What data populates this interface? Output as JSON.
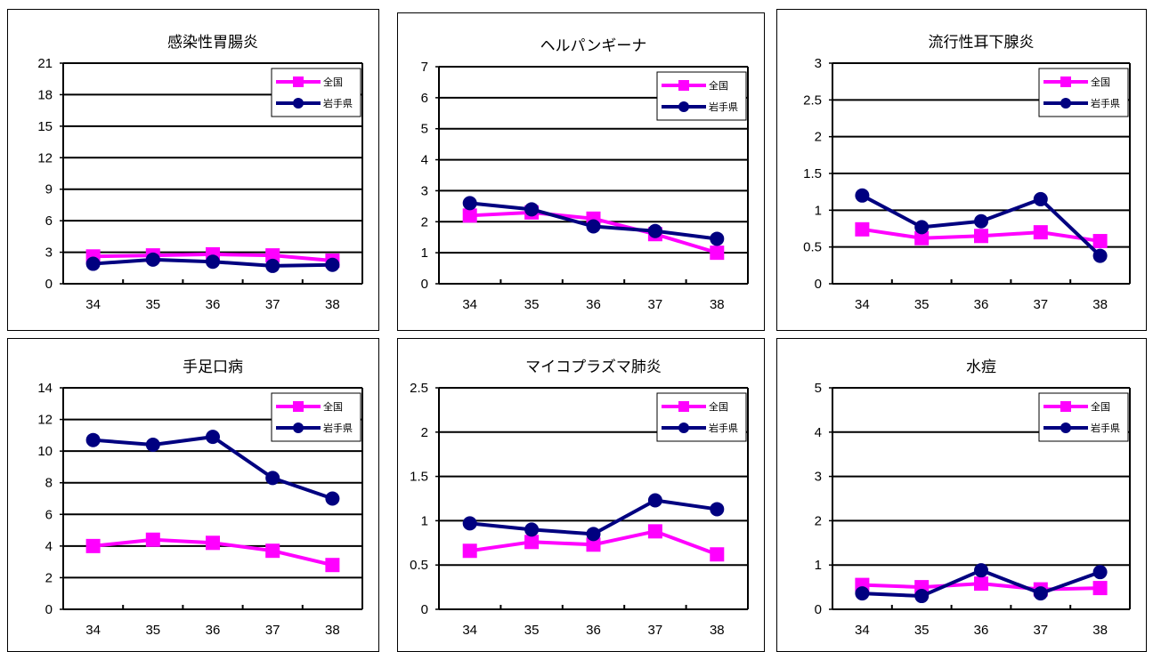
{
  "chart_data": [
    {
      "type": "line",
      "title": "感染性胃腸炎",
      "categories": [
        "34",
        "35",
        "36",
        "37",
        "38"
      ],
      "ylim": [
        0,
        21
      ],
      "yticks": [
        "0",
        "3",
        "6",
        "9",
        "12",
        "15",
        "18",
        "21"
      ],
      "grid": true,
      "legend": "top-right",
      "series": [
        {
          "name": "全国",
          "color": "#ff00ff",
          "marker": "square",
          "values": [
            2.6,
            2.7,
            2.8,
            2.7,
            2.2
          ]
        },
        {
          "name": "岩手県",
          "color": "#000080",
          "marker": "circle",
          "values": [
            1.9,
            2.3,
            2.1,
            1.7,
            1.8
          ]
        }
      ]
    },
    {
      "type": "line",
      "title": "ヘルパンギーナ",
      "categories": [
        "34",
        "35",
        "36",
        "37",
        "38"
      ],
      "ylim": [
        0,
        7
      ],
      "yticks": [
        "0",
        "1",
        "2",
        "3",
        "4",
        "5",
        "6",
        "7"
      ],
      "grid": true,
      "legend": "top-right",
      "series": [
        {
          "name": "全国",
          "color": "#ff00ff",
          "marker": "square",
          "values": [
            2.2,
            2.3,
            2.1,
            1.6,
            1.0
          ]
        },
        {
          "name": "岩手県",
          "color": "#000080",
          "marker": "circle",
          "values": [
            2.6,
            2.4,
            1.85,
            1.7,
            1.45
          ]
        }
      ]
    },
    {
      "type": "line",
      "title": "流行性耳下腺炎",
      "categories": [
        "34",
        "35",
        "36",
        "37",
        "38"
      ],
      "ylim": [
        0,
        3
      ],
      "yticks": [
        "0",
        "0.5",
        "1",
        "1.5",
        "2",
        "2.5",
        "3"
      ],
      "grid": true,
      "legend": "top-right",
      "series": [
        {
          "name": "全国",
          "color": "#ff00ff",
          "marker": "square",
          "values": [
            0.74,
            0.62,
            0.65,
            0.7,
            0.58
          ]
        },
        {
          "name": "岩手県",
          "color": "#000080",
          "marker": "circle",
          "values": [
            1.2,
            0.77,
            0.85,
            1.15,
            0.38
          ]
        }
      ]
    },
    {
      "type": "line",
      "title": "手足口病",
      "categories": [
        "34",
        "35",
        "36",
        "37",
        "38"
      ],
      "ylim": [
        0,
        14
      ],
      "yticks": [
        "0",
        "2",
        "4",
        "6",
        "8",
        "10",
        "12",
        "14"
      ],
      "grid": true,
      "legend": "top-right",
      "series": [
        {
          "name": "全国",
          "color": "#ff00ff",
          "marker": "square",
          "values": [
            4.0,
            4.4,
            4.2,
            3.7,
            2.8
          ]
        },
        {
          "name": "岩手県",
          "color": "#000080",
          "marker": "circle",
          "values": [
            10.7,
            10.4,
            10.9,
            8.3,
            7.0
          ]
        }
      ]
    },
    {
      "type": "line",
      "title": "マイコプラズマ肺炎",
      "categories": [
        "34",
        "35",
        "36",
        "37",
        "38"
      ],
      "ylim": [
        0,
        2.5
      ],
      "yticks": [
        "0",
        "0.5",
        "1",
        "1.5",
        "2",
        "2.5"
      ],
      "grid": true,
      "legend": "top-right",
      "series": [
        {
          "name": "全国",
          "color": "#ff00ff",
          "marker": "square",
          "values": [
            0.66,
            0.76,
            0.73,
            0.88,
            0.62
          ]
        },
        {
          "name": "岩手県",
          "color": "#000080",
          "marker": "circle",
          "values": [
            0.97,
            0.9,
            0.85,
            1.23,
            1.13
          ]
        }
      ]
    },
    {
      "type": "line",
      "title": "水痘",
      "categories": [
        "34",
        "35",
        "36",
        "37",
        "38"
      ],
      "ylim": [
        0,
        5
      ],
      "yticks": [
        "0",
        "1",
        "2",
        "3",
        "4",
        "5"
      ],
      "grid": true,
      "legend": "top-right",
      "series": [
        {
          "name": "全国",
          "color": "#ff00ff",
          "marker": "square",
          "values": [
            0.55,
            0.5,
            0.58,
            0.45,
            0.48
          ]
        },
        {
          "name": "岩手県",
          "color": "#000080",
          "marker": "circle",
          "values": [
            0.36,
            0.3,
            0.88,
            0.36,
            0.84
          ]
        }
      ]
    }
  ]
}
